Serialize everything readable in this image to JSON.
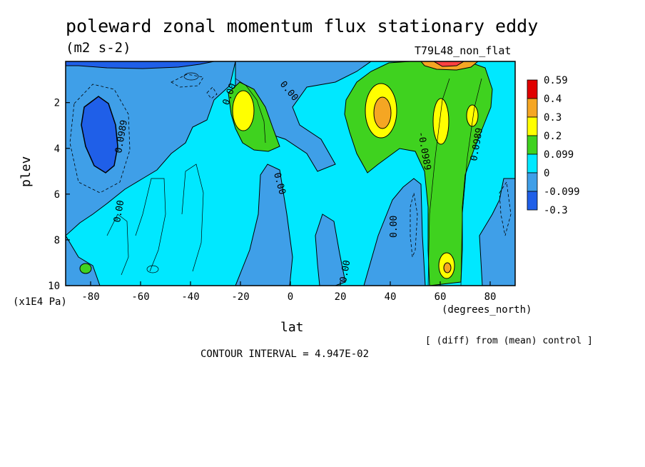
{
  "chart_data": {
    "type": "contour",
    "title": "poleward zonal momentum flux stationary eddy",
    "units": "(m2 s-2)",
    "run_label": "T79L48_non_flat",
    "xlabel": "lat",
    "x_unit": "(degrees_north)",
    "ylabel": "plev",
    "y_unit": "(x1E4 Pa)",
    "x_ticks": [
      "-80",
      "-60",
      "-40",
      "-20",
      "0",
      "20",
      "40",
      "60",
      "80"
    ],
    "x_tick_values": [
      -80,
      -60,
      -40,
      -20,
      0,
      20,
      40,
      60,
      80
    ],
    "y_ticks": [
      "2",
      "4",
      "6",
      "8",
      "10"
    ],
    "y_tick_values": [
      2,
      4,
      6,
      8,
      10
    ],
    "xlim": [
      -90,
      90
    ],
    "ylim": [
      10,
      0.2
    ],
    "levels": [
      "-0.3",
      "-0.099",
      "0",
      "0.099",
      "0.2",
      "0.3",
      "0.4",
      "0.59"
    ],
    "level_colors": [
      "#1f5fe8",
      "#3f9fe8",
      "#00e8ff",
      "#3fd21f",
      "#ffff00",
      "#f5a623",
      "#ff4040",
      "#e00000"
    ],
    "contour_labels": [
      "0.0989",
      "0.00",
      "0.00",
      "0.00",
      "0.00",
      "0.00",
      "0.00",
      "-0.0989",
      "0.0989"
    ],
    "features": [
      {
        "name": "negative minimum",
        "lat": -78,
        "plev": 3.2,
        "value": -0.3
      },
      {
        "name": "positive maximum",
        "lat": -20,
        "plev": 2.3,
        "value": 0.3
      },
      {
        "name": "positive maximum",
        "lat": 36,
        "plev": 2.4,
        "value": 0.4
      },
      {
        "name": "positive maximum",
        "lat": 60,
        "plev": 2.7,
        "value": 0.2
      },
      {
        "name": "positive maximum",
        "lat": 72,
        "plev": 2.5,
        "value": 0.2
      },
      {
        "name": "positive maximum",
        "lat": 62,
        "plev": 9.2,
        "value": 0.3
      },
      {
        "name": "positive maximum",
        "lat": 65,
        "plev": 0.3,
        "value": 0.59
      }
    ],
    "footer_left": "[ (diff) from (mean) control ]",
    "contour_interval": "CONTOUR INTERVAL = 4.947E-02"
  }
}
